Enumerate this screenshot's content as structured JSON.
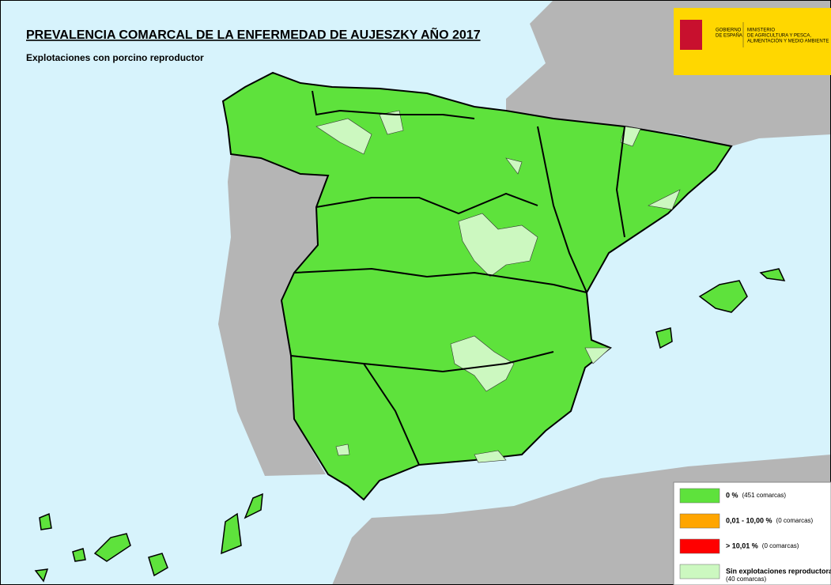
{
  "header": {
    "title": "PREVALENCIA COMARCAL DE LA ENFERMEDAD DE AUJESZKY AÑO 2017",
    "subtitle": "Explotaciones con porcino reproductor"
  },
  "logo": {
    "gobierno": "GOBIERNO",
    "espana": "DE ESPAÑA",
    "ministerio": "MINISTERIO",
    "line2": "DE AGRICULTURA Y PESCA,",
    "line3": "ALIMENTACIÓN Y MEDIO AMBIENTE"
  },
  "legend": {
    "items": [
      {
        "label": "0 %",
        "count": "(451 comarcas)",
        "color": "#5ee23c"
      },
      {
        "label": "0,01 - 10,00 %",
        "count": "(0 comarcas)",
        "color": "#ffa500"
      },
      {
        "label": "> 10,01 %",
        "count": "(0 comarcas)",
        "color": "#ff0000"
      },
      {
        "label": "Sin explotaciones reproductoras",
        "count": "(40 comarcas)",
        "color": "#ccf8c0"
      }
    ]
  }
}
